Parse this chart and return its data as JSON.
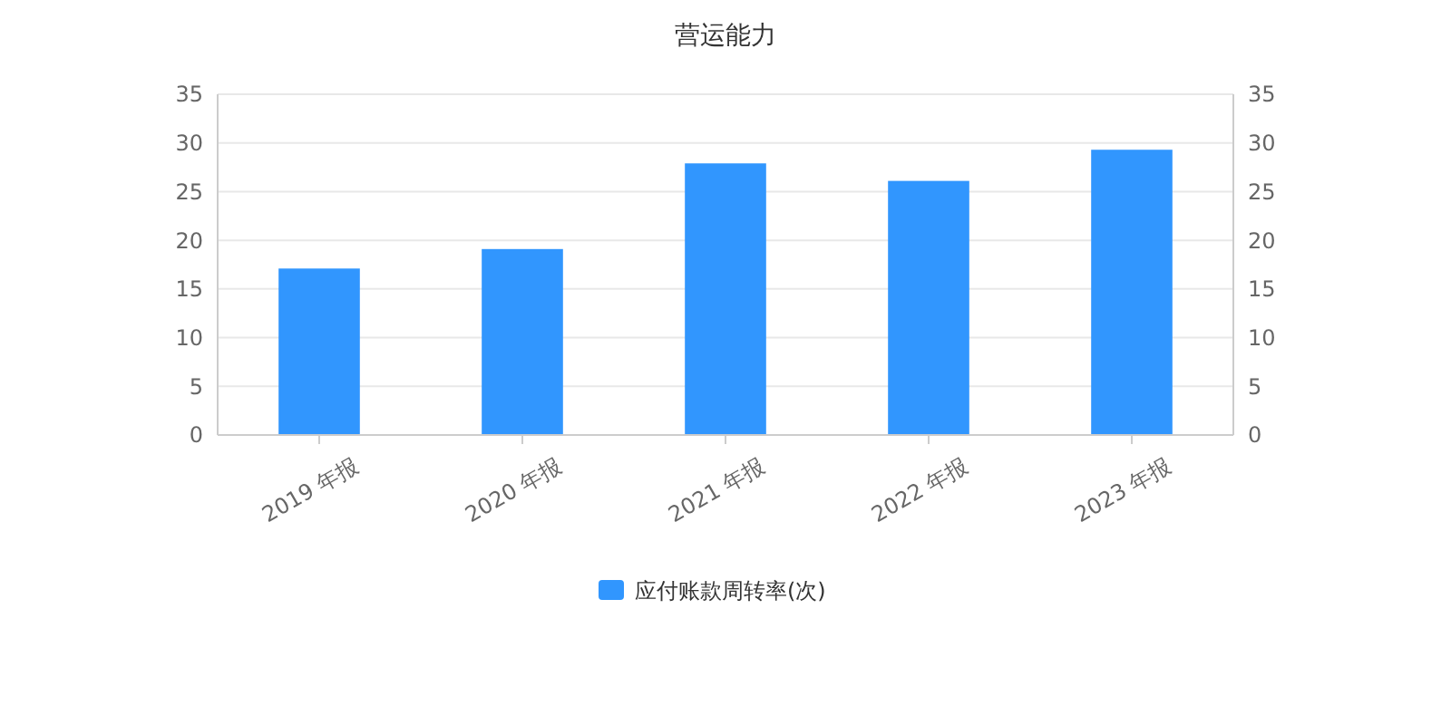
{
  "chart_data": {
    "type": "bar",
    "title": "营运能力",
    "categories": [
      "2019 年报",
      "2020 年报",
      "2021 年报",
      "2022 年报",
      "2023 年报"
    ],
    "series": [
      {
        "name": "应付账款周转率(次)",
        "color": "#3196fe",
        "values": [
          17.1,
          19.1,
          27.9,
          26.1,
          29.3
        ]
      }
    ],
    "ylim": [
      0,
      35
    ],
    "yticks": [
      0,
      5,
      10,
      15,
      20,
      25,
      30,
      35
    ],
    "y2lim": [
      0,
      35
    ],
    "y2ticks": [
      0,
      5,
      10,
      15,
      20,
      25,
      30,
      35
    ],
    "grid": "y",
    "legend": "bottom"
  }
}
